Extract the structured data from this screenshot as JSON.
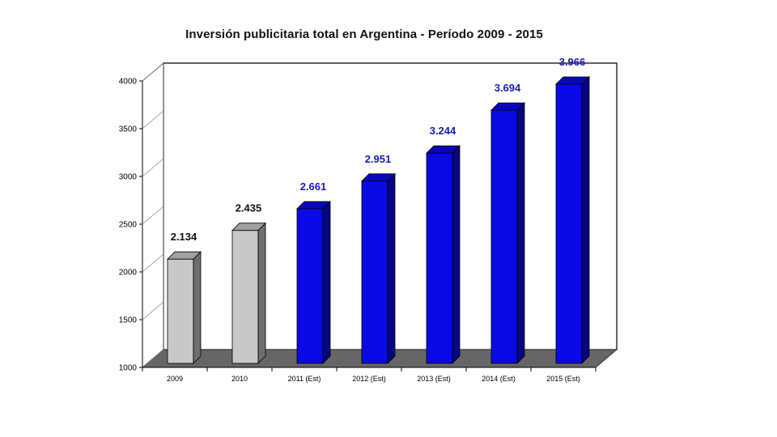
{
  "chart_data": {
    "type": "bar",
    "title": "Inversión publicitaria total en Argentina - Período 2009 - 2015",
    "categories": [
      "2009",
      "2010",
      "2011 (Est)",
      "2012 (Est)",
      "2013 (Est)",
      "2014 (Est)",
      "2015 (Est)"
    ],
    "values": [
      2134,
      2435,
      2661,
      2951,
      3244,
      3694,
      3966
    ],
    "data_labels": [
      "2.134",
      "2.435",
      "2.661",
      "2.951",
      "3.244",
      "3.694",
      "3.966"
    ],
    "bar_colors": [
      "#c8c8c8",
      "#c8c8c8",
      "#0a0ae6",
      "#0a0ae6",
      "#0a0ae6",
      "#0a0ae6",
      "#0a0ae6"
    ],
    "label_colors": [
      "#111111",
      "#111111",
      "#1a1ab4",
      "#1a1ab4",
      "#1a1ab4",
      "#1a1ab4",
      "#1a1ab4"
    ],
    "ylim": [
      1000,
      4000
    ],
    "yticks": [
      1000,
      1500,
      2000,
      2500,
      3000,
      3500,
      4000
    ],
    "xlabel": "",
    "ylabel": "",
    "grid": false,
    "legend": "none",
    "style": "3d-columns"
  }
}
